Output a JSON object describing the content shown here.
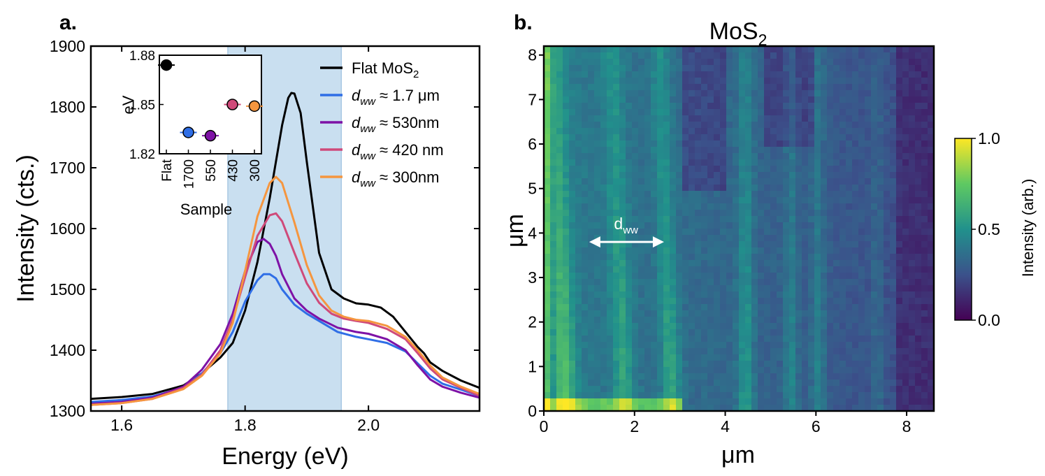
{
  "chart_data": [
    {
      "type": "line",
      "panel_label": "a.",
      "title": "",
      "xlabel": "Energy (eV)",
      "ylabel": "Intensity (cts.)",
      "xlim": [
        1.55,
        2.18
      ],
      "ylim": [
        1300,
        1900
      ],
      "xticks": [
        1.6,
        1.8,
        2.0
      ],
      "xtick_labels": [
        "1.6",
        "1.8",
        "2.0"
      ],
      "yticks": [
        1300,
        1400,
        1500,
        1600,
        1700,
        1800,
        1900
      ],
      "ytick_labels": [
        "1300",
        "1400",
        "1500",
        "1600",
        "1700",
        "1800",
        "1900"
      ],
      "shaded_region": {
        "x0": 1.772,
        "x1": 1.956,
        "color": "#c9dff0"
      },
      "legend_position": "upper-right",
      "series": [
        {
          "name": "Flat MoS2",
          "legend_main": "Flat MoS",
          "legend_sub": "2",
          "legend_tail": "",
          "color": "#000000",
          "x": [
            1.55,
            1.6,
            1.65,
            1.7,
            1.73,
            1.76,
            1.78,
            1.8,
            1.82,
            1.84,
            1.86,
            1.87,
            1.875,
            1.88,
            1.89,
            1.9,
            1.92,
            1.94,
            1.96,
            1.98,
            2.0,
            2.02,
            2.04,
            2.06,
            2.08,
            2.09,
            2.1,
            2.12,
            2.15,
            2.18
          ],
          "y": [
            1320,
            1323,
            1328,
            1342,
            1362,
            1388,
            1412,
            1465,
            1545,
            1650,
            1770,
            1815,
            1823,
            1822,
            1790,
            1710,
            1560,
            1500,
            1485,
            1477,
            1475,
            1470,
            1455,
            1430,
            1405,
            1395,
            1380,
            1366,
            1350,
            1338
          ]
        },
        {
          "name": "d_ww ≈ 1.7 μm",
          "legend_main": "d",
          "legend_sub": "ww",
          "legend_tail": " ≈ 1.7 μm",
          "color": "#2f6ee6",
          "x": [
            1.55,
            1.6,
            1.65,
            1.7,
            1.73,
            1.76,
            1.78,
            1.8,
            1.82,
            1.83,
            1.84,
            1.85,
            1.86,
            1.88,
            1.9,
            1.92,
            1.95,
            1.98,
            2.0,
            2.03,
            2.06,
            2.08,
            2.1,
            2.12,
            2.15,
            2.18
          ],
          "y": [
            1315,
            1318,
            1324,
            1338,
            1362,
            1395,
            1430,
            1480,
            1515,
            1525,
            1525,
            1518,
            1500,
            1475,
            1460,
            1448,
            1430,
            1422,
            1418,
            1412,
            1398,
            1378,
            1358,
            1345,
            1335,
            1325
          ]
        },
        {
          "name": "d_ww ≈ 530nm",
          "legend_main": "d",
          "legend_sub": "ww",
          "legend_tail": " ≈ 530nm",
          "color": "#7e12a6",
          "x": [
            1.55,
            1.6,
            1.65,
            1.7,
            1.73,
            1.76,
            1.78,
            1.8,
            1.82,
            1.83,
            1.84,
            1.85,
            1.86,
            1.88,
            1.9,
            1.92,
            1.95,
            1.98,
            2.0,
            2.03,
            2.06,
            2.08,
            2.1,
            2.12,
            2.15,
            2.18
          ],
          "y": [
            1312,
            1315,
            1322,
            1340,
            1368,
            1410,
            1460,
            1530,
            1578,
            1583,
            1575,
            1555,
            1525,
            1485,
            1465,
            1452,
            1437,
            1430,
            1427,
            1418,
            1400,
            1375,
            1352,
            1340,
            1330,
            1322
          ]
        },
        {
          "name": "d_ww ≈ 420 nm",
          "legend_main": "d",
          "legend_sub": "ww",
          "legend_tail": " ≈ 420 nm",
          "color": "#cf4a7a",
          "x": [
            1.55,
            1.6,
            1.65,
            1.7,
            1.73,
            1.76,
            1.78,
            1.8,
            1.82,
            1.84,
            1.85,
            1.86,
            1.88,
            1.9,
            1.92,
            1.94,
            1.96,
            1.98,
            2.0,
            2.03,
            2.06,
            2.08,
            2.1,
            2.12,
            2.15,
            2.18
          ],
          "y": [
            1310,
            1313,
            1320,
            1338,
            1360,
            1400,
            1450,
            1520,
            1588,
            1622,
            1625,
            1612,
            1560,
            1510,
            1478,
            1460,
            1452,
            1448,
            1445,
            1435,
            1418,
            1395,
            1370,
            1352,
            1338,
            1325
          ]
        },
        {
          "name": "d_ww ≈ 300nm",
          "legend_main": "d",
          "legend_sub": "ww",
          "legend_tail": " ≈ 300nm",
          "color": "#f5963f",
          "x": [
            1.55,
            1.6,
            1.65,
            1.7,
            1.73,
            1.76,
            1.78,
            1.8,
            1.82,
            1.84,
            1.85,
            1.86,
            1.88,
            1.9,
            1.92,
            1.94,
            1.96,
            1.98,
            2.0,
            2.03,
            2.06,
            2.08,
            2.1,
            2.12,
            2.15,
            2.18
          ],
          "y": [
            1310,
            1313,
            1320,
            1336,
            1358,
            1395,
            1445,
            1530,
            1620,
            1675,
            1685,
            1675,
            1610,
            1540,
            1490,
            1465,
            1455,
            1450,
            1448,
            1440,
            1422,
            1400,
            1375,
            1355,
            1340,
            1328
          ]
        }
      ],
      "inset": {
        "type": "scatter",
        "xlabel": "Sample",
        "ylabel": "eV",
        "ylim": [
          1.82,
          1.88
        ],
        "yticks": [
          1.82,
          1.85,
          1.88
        ],
        "ytick_labels": [
          "1.82",
          "1.85",
          "1.88"
        ],
        "categories": [
          "Flat",
          "1700",
          "550",
          "430",
          "300"
        ],
        "values": [
          1.874,
          1.833,
          1.831,
          1.85,
          1.849
        ],
        "colors": [
          "#000000",
          "#2f6ee6",
          "#7e12a6",
          "#cf4a7a",
          "#f5963f"
        ]
      }
    },
    {
      "type": "heatmap",
      "panel_label": "b.",
      "title": "MoS",
      "title_sub": "2",
      "xlabel": "μm",
      "ylabel": "μm",
      "xlim": [
        0,
        8.6
      ],
      "ylim": [
        0,
        8.2
      ],
      "xticks": [
        0,
        2,
        4,
        6,
        8
      ],
      "xtick_labels": [
        "0",
        "2",
        "4",
        "6",
        "8"
      ],
      "yticks": [
        0,
        1,
        2,
        3,
        4,
        5,
        6,
        7,
        8
      ],
      "ytick_labels": [
        "0",
        "1",
        "2",
        "3",
        "4",
        "5",
        "6",
        "7",
        "8"
      ],
      "colorscale": "viridis",
      "annotation": {
        "text": "d",
        "sub": "ww",
        "from_x": 1.0,
        "to_x": 2.65,
        "y": 3.8
      },
      "colorbar": {
        "label": "Intensity (arb.)",
        "ticks": [
          0.0,
          0.5,
          1.0
        ],
        "tick_labels": [
          "0.0",
          "0.5",
          "1.0"
        ]
      }
    }
  ]
}
